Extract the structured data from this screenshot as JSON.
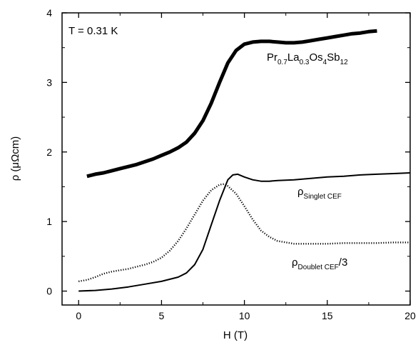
{
  "chart_data": {
    "type": "line",
    "title": "",
    "xlabel": "H (T)",
    "ylabel": "ρ (μΩcm)",
    "xlim": [
      -1,
      20
    ],
    "ylim": [
      -0.2,
      4
    ],
    "xticks": [
      0,
      5,
      10,
      15,
      20
    ],
    "yticks": [
      0,
      1,
      2,
      3,
      4
    ],
    "grid": false,
    "legend": "none",
    "annotations": {
      "temperature": "T = 0.31 K",
      "compound": {
        "parts": [
          "Pr",
          "0.7",
          "La",
          "0.3",
          "Os",
          "4",
          "Sb",
          "12"
        ]
      },
      "singlet": {
        "main": "ρ",
        "sub": "Singlet CEF"
      },
      "doublet": {
        "main": "ρ",
        "sub": "Doublet CEF",
        "suffix": "/3"
      }
    },
    "series": [
      {
        "style": "thick",
        "x": [
          0.5,
          1,
          1.5,
          2,
          2.5,
          3,
          3.5,
          4,
          4.5,
          5,
          5.5,
          6,
          6.5,
          7,
          7.5,
          8,
          8.5,
          9,
          9.5,
          10,
          10.5,
          11,
          11.5,
          12,
          12.5,
          13,
          13.5,
          14,
          14.5,
          15,
          15.5,
          16,
          16.5,
          17,
          17.5,
          18
        ],
        "y": [
          1.65,
          1.68,
          1.7,
          1.73,
          1.76,
          1.79,
          1.82,
          1.86,
          1.9,
          1.95,
          2.0,
          2.06,
          2.14,
          2.27,
          2.45,
          2.7,
          3.0,
          3.28,
          3.46,
          3.55,
          3.58,
          3.59,
          3.59,
          3.58,
          3.57,
          3.57,
          3.58,
          3.6,
          3.62,
          3.64,
          3.66,
          3.68,
          3.7,
          3.71,
          3.73,
          3.74
        ]
      },
      {
        "style": "solid",
        "x": [
          0,
          1,
          2,
          3,
          4,
          5,
          6,
          6.5,
          7,
          7.5,
          8,
          8.5,
          9,
          9.3,
          9.6,
          10,
          10.5,
          11,
          11.5,
          12,
          13,
          14,
          15,
          16,
          17,
          18,
          19,
          20
        ],
        "y": [
          0.0,
          0.01,
          0.03,
          0.06,
          0.1,
          0.14,
          0.2,
          0.26,
          0.38,
          0.6,
          0.95,
          1.3,
          1.6,
          1.67,
          1.68,
          1.64,
          1.6,
          1.58,
          1.58,
          1.59,
          1.6,
          1.62,
          1.64,
          1.65,
          1.67,
          1.68,
          1.69,
          1.7
        ]
      },
      {
        "style": "dotted",
        "x": [
          0,
          0.5,
          1,
          1.5,
          2,
          2.5,
          3,
          3.5,
          4,
          4.5,
          5,
          5.5,
          6,
          6.5,
          7,
          7.5,
          8,
          8.5,
          8.8,
          9,
          9.5,
          10,
          10.5,
          11,
          11.5,
          12,
          13,
          14,
          15,
          16,
          17,
          18,
          19,
          20
        ],
        "y": [
          0.14,
          0.16,
          0.2,
          0.25,
          0.28,
          0.3,
          0.32,
          0.35,
          0.38,
          0.42,
          0.48,
          0.58,
          0.72,
          0.9,
          1.1,
          1.3,
          1.45,
          1.53,
          1.54,
          1.51,
          1.4,
          1.22,
          1.03,
          0.87,
          0.78,
          0.72,
          0.68,
          0.68,
          0.68,
          0.69,
          0.69,
          0.69,
          0.7,
          0.7
        ]
      }
    ]
  }
}
